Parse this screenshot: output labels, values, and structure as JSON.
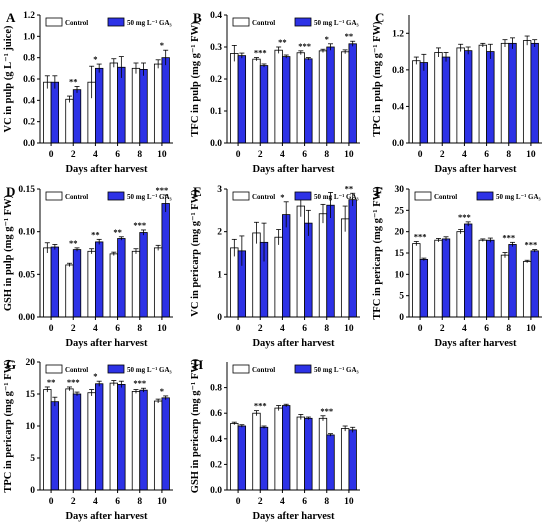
{
  "figure": {
    "colors": {
      "control_fill": "#ffffff",
      "treatment_fill": "#2d32e6",
      "stroke": "#000000"
    }
  },
  "chart_data": [
    {
      "panel": "A",
      "type": "bar",
      "categories": [
        "0",
        "2",
        "4",
        "6",
        "8",
        "10"
      ],
      "xlabel": "Days after harvest",
      "ylabel": "VC in pulp (g L⁻¹ juice)",
      "ylim": [
        0,
        1.2
      ],
      "yticks": [
        "0.0",
        "0.2",
        "0.4",
        "0.6",
        "0.8",
        "1.0",
        "1.2"
      ],
      "legend": {
        "position": "top",
        "entries": [
          "Control",
          "50 mg L⁻¹ GA₃"
        ]
      },
      "series": [
        {
          "name": "Control",
          "values": [
            0.57,
            0.41,
            0.57,
            0.75,
            0.7,
            0.74
          ],
          "errors": [
            0.06,
            0.03,
            0.15,
            0.04,
            0.05,
            0.04
          ]
        },
        {
          "name": "50 mg L⁻¹ GA₃",
          "values": [
            0.57,
            0.5,
            0.7,
            0.71,
            0.69,
            0.8
          ],
          "errors": [
            0.06,
            0.03,
            0.04,
            0.1,
            0.06,
            0.07
          ]
        }
      ],
      "significance": [
        "",
        "**",
        "*",
        "",
        "",
        "*"
      ]
    },
    {
      "panel": "B",
      "type": "bar",
      "categories": [
        "0",
        "2",
        "4",
        "6",
        "8",
        "10"
      ],
      "xlabel": "Days after harvest",
      "ylabel": "TFC in pulp (mg g⁻¹ FW)",
      "ylim": [
        0,
        0.4
      ],
      "yticks": [
        "0.0",
        "0.1",
        "0.2",
        "0.3",
        "0.4"
      ],
      "legend": {
        "position": "top",
        "entries": [
          "Control",
          "50 mg L⁻¹ GA₃"
        ]
      },
      "series": [
        {
          "name": "Control",
          "values": [
            0.28,
            0.262,
            0.29,
            0.282,
            0.288,
            0.285
          ],
          "errors": [
            0.025,
            0.005,
            0.01,
            0.006,
            0.005,
            0.006
          ]
        },
        {
          "name": "50 mg L⁻¹ GA₃",
          "values": [
            0.273,
            0.242,
            0.27,
            0.263,
            0.3,
            0.31
          ],
          "errors": [
            0.008,
            0.005,
            0.005,
            0.004,
            0.01,
            0.008
          ]
        }
      ],
      "significance": [
        "",
        "***",
        "**",
        "***",
        "*",
        "**"
      ]
    },
    {
      "panel": "C",
      "type": "bar",
      "categories": [
        "0",
        "2",
        "4",
        "6",
        "8",
        "10"
      ],
      "xlabel": "Days after harvest",
      "ylabel": "TPC in pulp (mg g⁻¹ FW)",
      "ylim": [
        0,
        1.4
      ],
      "yticks": [
        "0.0",
        "0.4",
        "0.8",
        "1.2"
      ],
      "legend": {
        "position": "none",
        "entries": []
      },
      "series": [
        {
          "name": "Control",
          "values": [
            0.9,
            0.99,
            1.04,
            1.07,
            1.09,
            1.12
          ],
          "errors": [
            0.04,
            0.05,
            0.04,
            0.02,
            0.04,
            0.05
          ]
        },
        {
          "name": "50 mg L⁻¹ GA₃",
          "values": [
            0.88,
            0.94,
            1.01,
            1.0,
            1.09,
            1.09
          ],
          "errors": [
            0.09,
            0.05,
            0.04,
            0.08,
            0.06,
            0.04
          ]
        }
      ],
      "significance": [
        "",
        "",
        "",
        "",
        "",
        ""
      ]
    },
    {
      "panel": "D",
      "type": "bar",
      "categories": [
        "0",
        "2",
        "4",
        "6",
        "8",
        "10"
      ],
      "xlabel": "Days after harvest",
      "ylabel": "GSH in pulp (mg g⁻¹ FW)",
      "ylim": [
        0,
        0.15
      ],
      "yticks": [
        "0.00",
        "0.05",
        "0.10",
        "0.15"
      ],
      "legend": {
        "position": "top",
        "entries": [
          "Control",
          "50 mg L⁻¹ GA₃"
        ]
      },
      "series": [
        {
          "name": "Control",
          "values": [
            0.081,
            0.061,
            0.077,
            0.074,
            0.077,
            0.081
          ],
          "errors": [
            0.006,
            0.002,
            0.003,
            0.002,
            0.003,
            0.003
          ]
        },
        {
          "name": "50 mg L⁻¹ GA₃",
          "values": [
            0.082,
            0.079,
            0.088,
            0.092,
            0.099,
            0.133
          ],
          "errors": [
            0.003,
            0.002,
            0.003,
            0.002,
            0.003,
            0.01
          ]
        }
      ],
      "significance": [
        "",
        "**",
        "**",
        "**",
        "***",
        "***"
      ]
    },
    {
      "panel": "E",
      "type": "bar",
      "categories": [
        "0",
        "2",
        "4",
        "6",
        "8",
        "10"
      ],
      "xlabel": "Days after harvest",
      "ylabel": "VC in pericarp (mg g⁻¹ FW)",
      "ylim": [
        0,
        3
      ],
      "yticks": [
        "0",
        "1",
        "2",
        "3"
      ],
      "legend": {
        "position": "top",
        "entries": [
          "Control",
          "50 mg L⁻¹ GA₃"
        ]
      },
      "series": [
        {
          "name": "Control",
          "values": [
            1.62,
            1.97,
            1.87,
            2.6,
            2.42,
            2.3
          ],
          "errors": [
            0.2,
            0.25,
            0.18,
            0.25,
            0.22,
            0.3
          ]
        },
        {
          "name": "50 mg L⁻¹ GA₃",
          "values": [
            1.55,
            1.75,
            2.4,
            2.2,
            2.62,
            2.75
          ],
          "errors": [
            0.35,
            0.45,
            0.3,
            0.3,
            0.3,
            0.15
          ]
        }
      ],
      "significance": [
        "",
        "",
        "*",
        "",
        "",
        "**"
      ]
    },
    {
      "panel": "F",
      "type": "bar",
      "categories": [
        "0",
        "2",
        "4",
        "6",
        "8",
        "10"
      ],
      "xlabel": "Days after harvest",
      "ylabel": "TFC in pericarp (mg g⁻¹ FW)",
      "ylim": [
        0,
        30
      ],
      "yticks": [
        "0",
        "5",
        "10",
        "15",
        "20",
        "25",
        "30"
      ],
      "legend": {
        "position": "top",
        "entries": [
          "Control",
          "50 mg L⁻¹ GA₃"
        ]
      },
      "series": [
        {
          "name": "Control",
          "values": [
            17.2,
            18.0,
            20.0,
            18.0,
            14.5,
            13.0
          ],
          "errors": [
            0.5,
            0.4,
            0.5,
            0.3,
            0.6,
            0.3
          ]
        },
        {
          "name": "50 mg L⁻¹ GA₃",
          "values": [
            13.5,
            18.3,
            21.8,
            18.0,
            17.0,
            15.5
          ],
          "errors": [
            0.3,
            0.5,
            0.5,
            0.5,
            0.5,
            0.3
          ]
        }
      ],
      "significance": [
        "***",
        "",
        "***",
        "",
        "***",
        "***"
      ]
    },
    {
      "panel": "G",
      "type": "bar",
      "categories": [
        "0",
        "2",
        "4",
        "6",
        "8",
        "10"
      ],
      "xlabel": "Days after harvest",
      "ylabel": "TPC in pericarp (mg g⁻¹ FW)",
      "ylim": [
        0,
        20
      ],
      "yticks": [
        "0",
        "5",
        "10",
        "15",
        "20"
      ],
      "legend": {
        "position": "top",
        "entries": [
          "Control",
          "50 mg L⁻¹ GA₃"
        ]
      },
      "series": [
        {
          "name": "Control",
          "values": [
            15.7,
            15.8,
            15.2,
            16.7,
            15.4,
            13.9
          ],
          "errors": [
            0.4,
            0.3,
            0.5,
            0.4,
            0.3,
            0.3
          ]
        },
        {
          "name": "50 mg L⁻¹ GA₃",
          "values": [
            13.8,
            15.0,
            16.6,
            16.5,
            15.6,
            14.4
          ],
          "errors": [
            0.7,
            0.3,
            0.4,
            0.5,
            0.3,
            0.3
          ]
        }
      ],
      "significance": [
        "**",
        "***",
        "*",
        "",
        "***",
        "*"
      ]
    },
    {
      "panel": "H",
      "type": "bar",
      "categories": [
        "0",
        "2",
        "4",
        "6",
        "8",
        "10"
      ],
      "xlabel": "Days after harvest",
      "ylabel": "GSH in pericarp (mg g⁻¹ FW)",
      "ylim": [
        0,
        1.0
      ],
      "yticks": [
        "0.0",
        "0.2",
        "0.4",
        "0.6",
        "0.8"
      ],
      "legend": {
        "position": "top",
        "entries": [
          "Control",
          "50 mg L⁻¹ GA₃"
        ]
      },
      "series": [
        {
          "name": "Control",
          "values": [
            0.52,
            0.6,
            0.64,
            0.57,
            0.56,
            0.48
          ],
          "errors": [
            0.01,
            0.02,
            0.02,
            0.02,
            0.02,
            0.02
          ]
        },
        {
          "name": "50 mg L⁻¹ GA₃",
          "values": [
            0.5,
            0.49,
            0.66,
            0.56,
            0.43,
            0.47
          ],
          "errors": [
            0.01,
            0.01,
            0.01,
            0.01,
            0.01,
            0.02
          ]
        }
      ],
      "significance": [
        "",
        "***",
        "",
        "",
        "***",
        ""
      ]
    }
  ]
}
